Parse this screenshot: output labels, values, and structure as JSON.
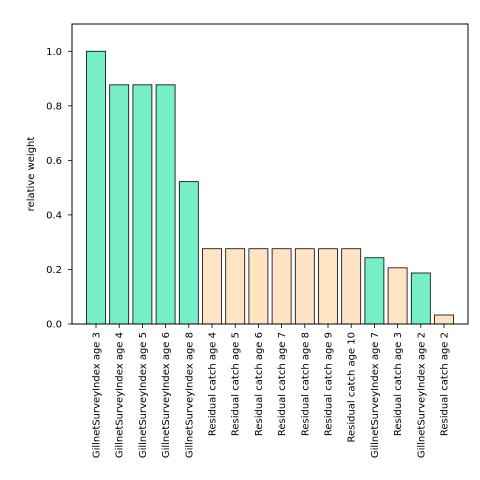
{
  "chart_data": {
    "type": "bar",
    "title": "",
    "xlabel": "",
    "ylabel": "relative weight",
    "ylim": [
      0,
      1.1
    ],
    "yticks": [
      0.0,
      0.2,
      0.4,
      0.6,
      0.8,
      1.0
    ],
    "ytick_labels": [
      "0.0",
      "0.2",
      "0.4",
      "0.6",
      "0.8",
      "1.0"
    ],
    "grid": false,
    "legend": "none",
    "colors": {
      "survey": "#76eec6",
      "residual": "#ffe4c4",
      "edge": "#000000"
    },
    "categories": [
      "GillnetSurveyIndex age 3",
      "GillnetSurveyIndex age 4",
      "GillnetSurveyIndex age 5",
      "GillnetSurveyIndex age 6",
      "GillnetSurveyIndex age 8",
      "Residual catch age 4",
      "Residual catch age 5",
      "Residual catch age 6",
      "Residual catch age 7",
      "Residual catch age 8",
      "Residual catch age 9",
      "Residual catch age 10",
      "GillnetSurveyIndex age 7",
      "Residual catch age 3",
      "GillnetSurveyIndex age 2",
      "Residual catch age 2"
    ],
    "values": [
      1.0,
      0.877,
      0.877,
      0.877,
      0.522,
      0.276,
      0.276,
      0.276,
      0.276,
      0.276,
      0.276,
      0.276,
      0.243,
      0.206,
      0.187,
      0.033
    ],
    "groups": [
      "survey",
      "survey",
      "survey",
      "survey",
      "survey",
      "residual",
      "residual",
      "residual",
      "residual",
      "residual",
      "residual",
      "residual",
      "survey",
      "residual",
      "survey",
      "residual"
    ]
  }
}
